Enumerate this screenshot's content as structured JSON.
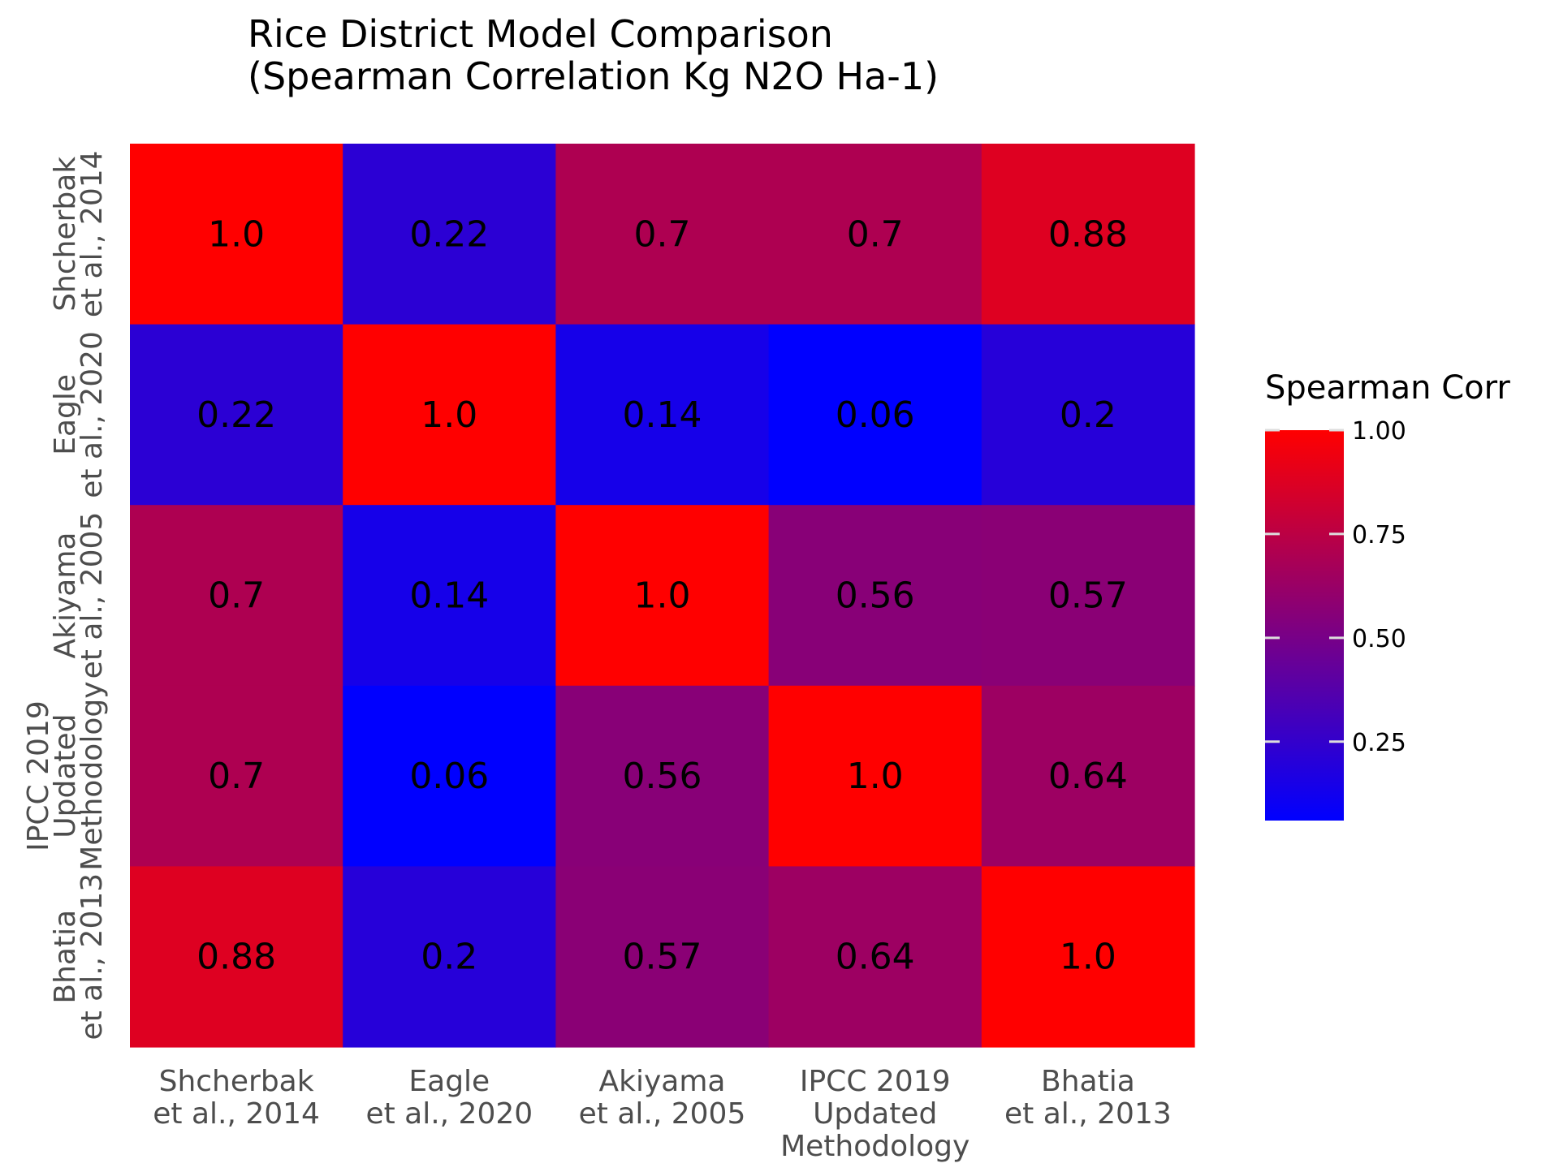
{
  "chart_data": {
    "type": "heatmap",
    "title": [
      "Rice District Model Comparison",
      "(Spearman Correlation Kg N2O Ha-1)"
    ],
    "categories": [
      [
        "Shcherbak",
        "et al., 2014"
      ],
      [
        "Eagle",
        "et al., 2020"
      ],
      [
        "Akiyama",
        "et al., 2005"
      ],
      [
        "IPCC 2019",
        "Updated",
        "Methodology"
      ],
      [
        "Bhatia",
        "et al., 2013"
      ]
    ],
    "values": [
      [
        1.0,
        0.22,
        0.7,
        0.7,
        0.88
      ],
      [
        0.22,
        1.0,
        0.14,
        0.06,
        0.2
      ],
      [
        0.7,
        0.14,
        1.0,
        0.56,
        0.57
      ],
      [
        0.7,
        0.06,
        0.56,
        1.0,
        0.64
      ],
      [
        0.88,
        0.2,
        0.57,
        0.64,
        1.0
      ]
    ],
    "cell_labels": [
      [
        "1.0",
        "0.22",
        "0.7",
        "0.7",
        "0.88"
      ],
      [
        "0.22",
        "1.0",
        "0.14",
        "0.06",
        "0.2"
      ],
      [
        "0.7",
        "0.14",
        "1.0",
        "0.56",
        "0.57"
      ],
      [
        "0.7",
        "0.06",
        "0.56",
        "1.0",
        "0.64"
      ],
      [
        "0.88",
        "0.2",
        "0.57",
        "0.64",
        "1.0"
      ]
    ],
    "colorbar": {
      "title": "Spearman Corr",
      "range": [
        0.06,
        1.0
      ],
      "ticks": [
        0.25,
        0.5,
        0.75,
        1.0
      ],
      "tick_labels": [
        "0.25",
        "0.50",
        "0.75",
        "1.00"
      ],
      "low_color": "#0000ff",
      "high_color": "#ff0000"
    },
    "grid": false
  }
}
